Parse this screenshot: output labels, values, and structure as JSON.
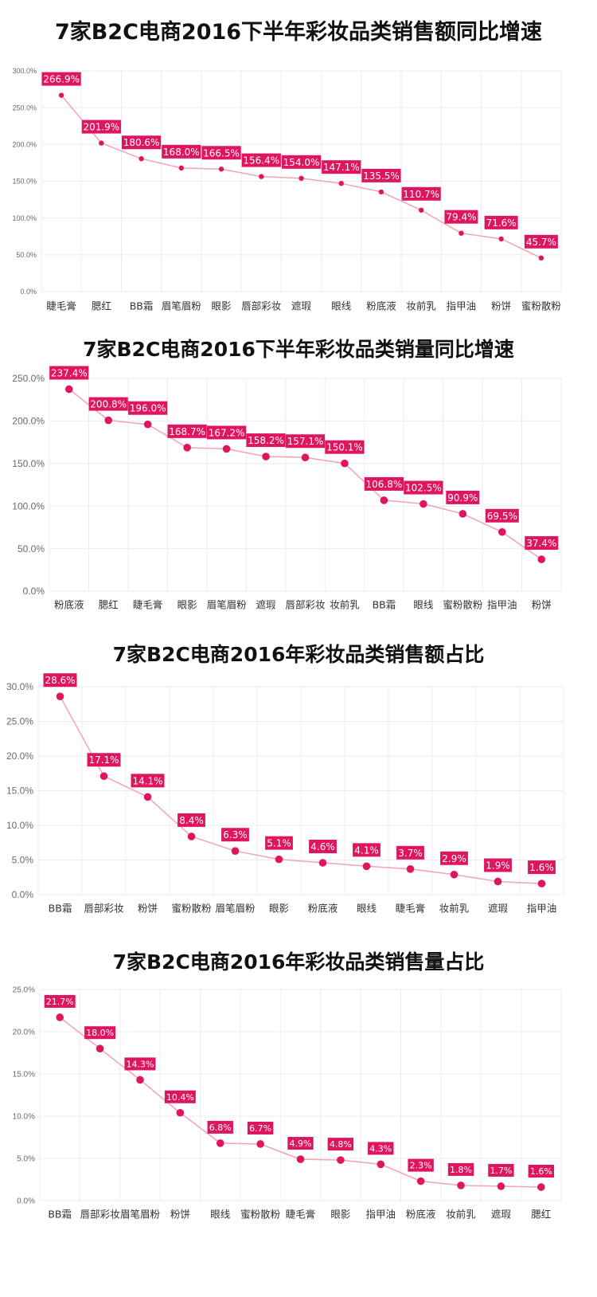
{
  "chart_data": [
    {
      "type": "line",
      "title": "7家B2C电商2016下半年彩妆品类销售额同比增速",
      "categories": [
        "睫毛膏",
        "腮红",
        "BB霜",
        "眉笔眉粉",
        "眼影",
        "唇部彩妆",
        "遮瑕",
        "眼线",
        "粉底液",
        "妆前乳",
        "指甲油",
        "粉饼",
        "蜜粉散粉"
      ],
      "values": [
        266.9,
        201.9,
        180.6,
        168.0,
        166.5,
        156.4,
        154.0,
        147.1,
        135.5,
        110.7,
        79.4,
        71.6,
        45.7
      ],
      "unit": "%",
      "yticks": [
        "0.0%",
        "50.0%",
        "100.0%",
        "150.0%",
        "200.0%",
        "250.0%",
        "300.0%"
      ],
      "ylim": [
        0,
        300
      ],
      "grid": true,
      "colors": {
        "line": "#f3a3b4",
        "point": "#e0155f",
        "label_bg": "#e0155f"
      }
    },
    {
      "type": "line",
      "title": "7家B2C电商2016下半年彩妆品类销量同比增速",
      "categories": [
        "粉底液",
        "腮红",
        "睫毛膏",
        "眼影",
        "眉笔眉粉",
        "遮瑕",
        "唇部彩妆",
        "妆前乳",
        "BB霜",
        "眼线",
        "蜜粉散粉",
        "指甲油",
        "粉饼"
      ],
      "values": [
        237.4,
        200.8,
        196.0,
        168.7,
        167.2,
        158.2,
        157.1,
        150.1,
        106.8,
        102.5,
        90.9,
        69.5,
        37.4
      ],
      "unit": "%",
      "yticks": [
        "0.0%",
        "50.0%",
        "100.0%",
        "150.0%",
        "200.0%",
        "250.0%"
      ],
      "ylim": [
        0,
        250
      ],
      "grid": true,
      "colors": {
        "line": "#f3a3b4",
        "point": "#e0155f",
        "label_bg": "#e0155f"
      }
    },
    {
      "type": "line",
      "title": "7家B2C电商2016年彩妆品类销售额占比",
      "categories": [
        "BB霜",
        "唇部彩妆",
        "粉饼",
        "蜜粉散粉",
        "眉笔眉粉",
        "眼影",
        "粉底液",
        "眼线",
        "睫毛膏",
        "妆前乳",
        "遮瑕",
        "指甲油"
      ],
      "values": [
        28.6,
        17.1,
        14.1,
        8.4,
        6.3,
        5.1,
        4.6,
        4.1,
        3.7,
        2.9,
        1.9,
        1.6
      ],
      "unit": "%",
      "yticks": [
        "0.0%",
        "5.0%",
        "10.0%",
        "15.0%",
        "20.0%",
        "25.0%",
        "30.0%"
      ],
      "ylim": [
        0,
        30
      ],
      "grid": true,
      "colors": {
        "line": "#f3a3b4",
        "point": "#e0155f",
        "label_bg": "#e0155f"
      }
    },
    {
      "type": "line",
      "title": "7家B2C电商2016年彩妆品类销售量占比",
      "categories": [
        "BB霜",
        "唇部彩妆",
        "眉笔眉粉",
        "粉饼",
        "眼线",
        "蜜粉散粉",
        "睫毛膏",
        "眼影",
        "指甲油",
        "粉底液",
        "妆前乳",
        "遮瑕",
        "腮红"
      ],
      "values": [
        21.7,
        18.0,
        14.3,
        10.4,
        6.8,
        6.7,
        4.9,
        4.8,
        4.3,
        2.3,
        1.8,
        1.7,
        1.6
      ],
      "unit": "%",
      "yticks": [
        "0.0%",
        "5.0%",
        "10.0%",
        "15.0%",
        "20.0%",
        "25.0%"
      ],
      "ylim": [
        0,
        25
      ],
      "grid": true,
      "colors": {
        "line": "#f3a3b4",
        "point": "#e0155f",
        "label_bg": "#e0155f"
      }
    }
  ]
}
